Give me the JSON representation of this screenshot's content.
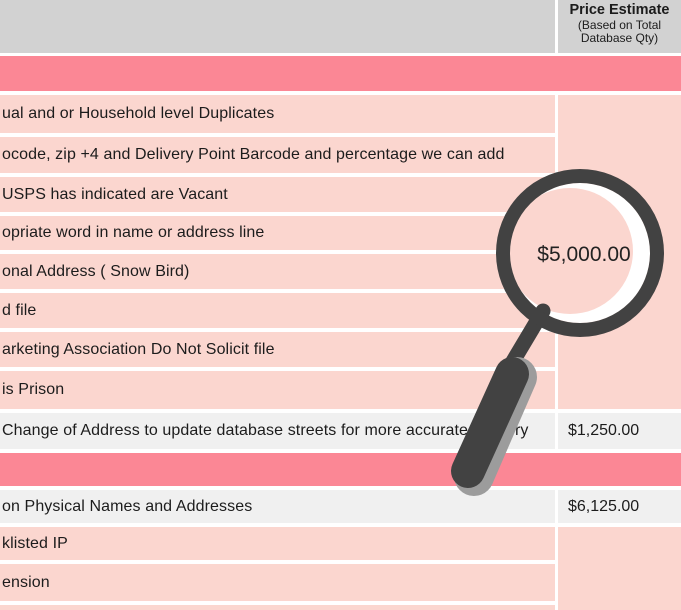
{
  "table": {
    "header": {
      "price_column_title": "Price Estimate",
      "price_column_subtitle": [
        "(Based on Total",
        "Database Qty)"
      ]
    },
    "rows": [
      {
        "text": "ual and or Household level Duplicates",
        "price": "",
        "style": "pink"
      },
      {
        "text": "ocode, zip +4 and Delivery Point Barcode and percentage we can add",
        "price": "",
        "style": "pink"
      },
      {
        "text": "USPS has indicated are Vacant",
        "price": "",
        "style": "pink"
      },
      {
        "text": "opriate word in name or address line",
        "price": "",
        "style": "pink"
      },
      {
        "text": "onal Address ( Snow Bird)",
        "price": "",
        "style": "pink"
      },
      {
        "text": "d file",
        "price": "",
        "style": "pink"
      },
      {
        "text": "arketing Association Do Not Solicit file",
        "price": "",
        "style": "pink"
      },
      {
        "text": "is Prison",
        "price": "",
        "style": "pink"
      },
      {
        "text": "Change of Address to update database streets for more accurate delivery",
        "price": "$1,250.00",
        "style": "gray"
      },
      {
        "type": "band"
      },
      {
        "text": "on Physical Names and Addresses",
        "price": "$6,125.00",
        "style": "gray"
      },
      {
        "text": "klisted IP",
        "price": "",
        "style": "pink"
      },
      {
        "text": "ension",
        "price": "",
        "style": "pink"
      }
    ]
  },
  "magnifier": {
    "value": "$5,000.00"
  },
  "colors": {
    "band_pink": "#fb8795",
    "row_pink": "#fbd6cf",
    "row_gray": "#f0f0f0",
    "header_gray": "#d2d2d2",
    "glass_dark": "#424242",
    "glass_bevel": "#9c9c9c"
  }
}
